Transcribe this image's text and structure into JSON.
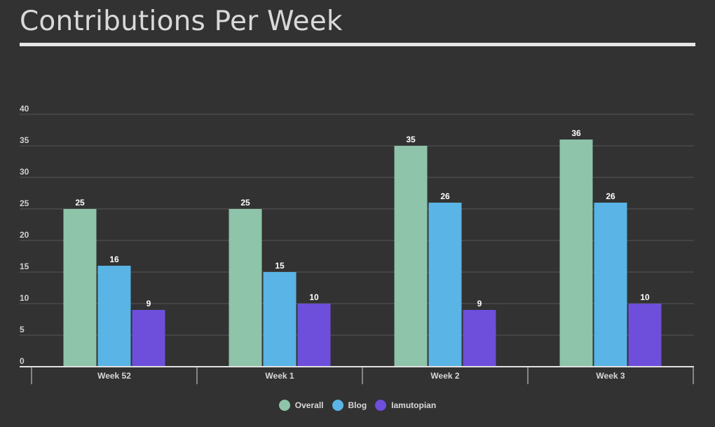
{
  "title": "Contributions Per Week",
  "chart_data": {
    "type": "bar",
    "categories": [
      "Week 52",
      "Week 1",
      "Week 2",
      "Week 3"
    ],
    "series": [
      {
        "name": "Overall",
        "values": [
          25,
          25,
          35,
          36
        ],
        "color": "#8ec4a9"
      },
      {
        "name": "Blog",
        "values": [
          16,
          15,
          26,
          26
        ],
        "color": "#5ab4e5"
      },
      {
        "name": "Iamutopian",
        "values": [
          9,
          10,
          9,
          10
        ],
        "color": "#6d4fdb"
      }
    ],
    "yticks": [
      "0",
      "5",
      "10",
      "15",
      "20",
      "25",
      "30",
      "35",
      "40"
    ],
    "ylim": [
      0,
      40
    ],
    "grid": true,
    "legend_position": "bottom",
    "data_labels": true
  }
}
